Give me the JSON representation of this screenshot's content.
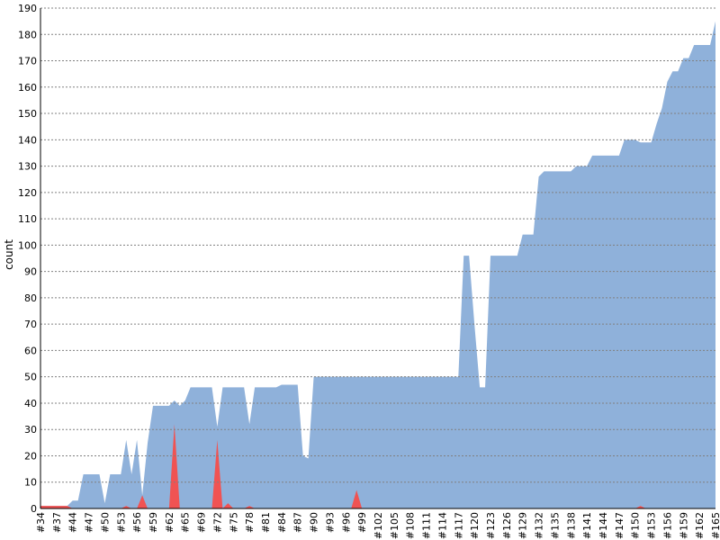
{
  "chart_data": {
    "type": "area",
    "y_label": "count",
    "categories": [
      "#34",
      null,
      null,
      "#37",
      null,
      null,
      "#44",
      null,
      null,
      "#47",
      null,
      null,
      "#50",
      null,
      null,
      "#53",
      null,
      null,
      "#56",
      null,
      null,
      "#59",
      null,
      null,
      "#62",
      null,
      null,
      "#65",
      null,
      null,
      "#69",
      null,
      null,
      "#72",
      null,
      null,
      "#75",
      null,
      null,
      "#78",
      null,
      null,
      "#81",
      null,
      null,
      "#84",
      null,
      null,
      "#87",
      null,
      null,
      "#90",
      null,
      null,
      "#93",
      null,
      null,
      "#96",
      null,
      null,
      "#99",
      null,
      null,
      "#102",
      null,
      null,
      "#105",
      null,
      null,
      "#108",
      null,
      null,
      "#111",
      null,
      null,
      "#114",
      null,
      null,
      "#117",
      null,
      null,
      "#120",
      null,
      null,
      "#123",
      null,
      null,
      "#126",
      null,
      null,
      "#129",
      null,
      null,
      "#132",
      null,
      null,
      "#135",
      null,
      null,
      "#138",
      null,
      null,
      "#141",
      null,
      null,
      "#144",
      null,
      null,
      "#147",
      null,
      null,
      "#150",
      null,
      null,
      "#153",
      null,
      null,
      "#156",
      null,
      null,
      "#159",
      null,
      null,
      "#162",
      null,
      null,
      "#165"
    ],
    "series": [
      {
        "color": "#8fb1da",
        "values": [
          1,
          1,
          1,
          1,
          1,
          1,
          3,
          3,
          13,
          13,
          13,
          13,
          2,
          13,
          13,
          13,
          26,
          13,
          26,
          5,
          25,
          39,
          39,
          39,
          39,
          41,
          39,
          41,
          46,
          46,
          46,
          46,
          46,
          31,
          46,
          46,
          46,
          46,
          46,
          32,
          46,
          46,
          46,
          46,
          46,
          47,
          47,
          47,
          47,
          20,
          19,
          50,
          50,
          50,
          50,
          50,
          50,
          50,
          50,
          50,
          50,
          50,
          50,
          50,
          50,
          50,
          50,
          50,
          50,
          50,
          50,
          50,
          50,
          50,
          50,
          50,
          50,
          50,
          50,
          96,
          96,
          70,
          46,
          46,
          96,
          96,
          96,
          96,
          96,
          96,
          104,
          104,
          104,
          126,
          128,
          128,
          128,
          128,
          128,
          128,
          130,
          130,
          130,
          134,
          134,
          134,
          134,
          134,
          134,
          140,
          140,
          140,
          139,
          139,
          139,
          146,
          152,
          162,
          166,
          166,
          171,
          171,
          176,
          176,
          176,
          176,
          185
        ]
      },
      {
        "color": "#f05353",
        "values": [
          1,
          1,
          1,
          1,
          1,
          1,
          0,
          0,
          0,
          0,
          0,
          0,
          0,
          0,
          0,
          0,
          1,
          0,
          0,
          5,
          0,
          0,
          0,
          0,
          0,
          32,
          0,
          0,
          0,
          0,
          0,
          0,
          0,
          26,
          0,
          2,
          0,
          0,
          0,
          1,
          0,
          0,
          0,
          0,
          0,
          0,
          0,
          0,
          0,
          0,
          0,
          0,
          0,
          0,
          0,
          0,
          0,
          0,
          0,
          7,
          0,
          0,
          0,
          0,
          0,
          0,
          0,
          0,
          0,
          0,
          0,
          0,
          0,
          0,
          0,
          0,
          0,
          0,
          0,
          0,
          0,
          0,
          0,
          0,
          0,
          0,
          0,
          0,
          0,
          0,
          0,
          0,
          0,
          0,
          0,
          0,
          0,
          0,
          0,
          0,
          0,
          0,
          0,
          0,
          0,
          0,
          0,
          0,
          0,
          0,
          0,
          0,
          1,
          0,
          0,
          0,
          0,
          0,
          0,
          0,
          0,
          0,
          0,
          0,
          0,
          0,
          0
        ]
      }
    ],
    "ylim": [
      0,
      190
    ],
    "yticks": [
      0,
      10,
      20,
      30,
      40,
      50,
      60,
      70,
      80,
      90,
      100,
      110,
      120,
      130,
      140,
      150,
      160,
      170,
      180,
      190
    ],
    "grid": true
  }
}
